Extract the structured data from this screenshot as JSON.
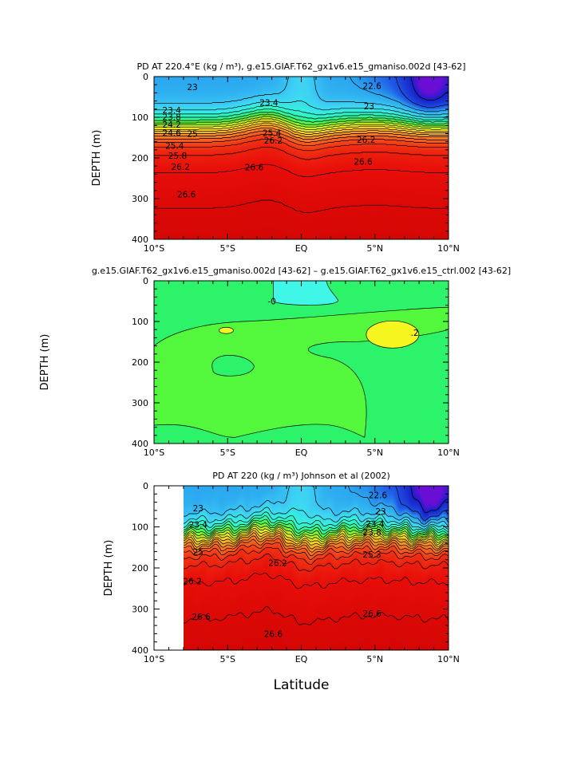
{
  "chart_data": [
    {
      "type": "heatmap",
      "title": "PD AT 220.4°E (kg / m³), g.e15.GIAF.T62_gx1v6.e15_gmaniso.002d [43-62]",
      "ylabel": "DEPTH (m)",
      "xlabel": "",
      "x_tick_labels": [
        "10°S",
        "5°S",
        "EQ",
        "5°N",
        "10°N"
      ],
      "x_ticks": [
        -10,
        -5,
        0,
        5,
        10
      ],
      "y_tick_labels": [
        "0",
        "100",
        "200",
        "300",
        "400"
      ],
      "y_ticks": [
        0,
        100,
        200,
        300,
        400
      ],
      "xlim": [
        -10,
        10
      ],
      "ylim": [
        400,
        0
      ],
      "contour_levels": [
        22.6,
        22.8,
        23.0,
        23.2,
        23.4,
        23.6,
        23.8,
        24.0,
        24.2,
        24.4,
        24.6,
        24.8,
        25.0,
        25.2,
        25.4,
        25.6,
        25.8,
        26.0,
        26.2,
        26.4,
        26.6,
        26.8,
        27.0
      ],
      "contour_labels": [
        {
          "text": "23",
          "x": -7.4,
          "y": 33
        },
        {
          "text": "22.6",
          "x": 4.8,
          "y": 30
        },
        {
          "text": "23.4",
          "x": -2.2,
          "y": 72
        },
        {
          "text": "23",
          "x": 4.6,
          "y": 80
        },
        {
          "text": "23.4",
          "x": -8.8,
          "y": 90
        },
        {
          "text": "23.8",
          "x": -8.8,
          "y": 107
        },
        {
          "text": "24.2",
          "x": -8.8,
          "y": 125
        },
        {
          "text": "24.6",
          "x": -8.8,
          "y": 146
        },
        {
          "text": "25",
          "x": -7.4,
          "y": 148
        },
        {
          "text": "25.4",
          "x": -8.6,
          "y": 177
        },
        {
          "text": "25.8",
          "x": -8.4,
          "y": 202
        },
        {
          "text": "26.2",
          "x": -8.2,
          "y": 229
        },
        {
          "text": "26.6",
          "x": -7.8,
          "y": 297
        },
        {
          "text": "26.6",
          "x": -3.2,
          "y": 230
        },
        {
          "text": "26.6",
          "x": 4.2,
          "y": 217
        },
        {
          "text": "25.4",
          "x": -2.0,
          "y": 146
        },
        {
          "text": "26.2",
          "x": -1.9,
          "y": 165
        },
        {
          "text": "26.2",
          "x": 4.4,
          "y": 163
        }
      ]
    },
    {
      "type": "heatmap",
      "title": "g.e15.GIAF.T62_gx1v6.e15_gmaniso.002d [43-62] – g.e15.GIAF.T62_gx1v6.e15_ctrl.002 [43-62]",
      "ylabel": "DEPTH (m)",
      "xlabel": "",
      "x_tick_labels": [
        "10°S",
        "5°S",
        "EQ",
        "5°N",
        "10°N"
      ],
      "x_ticks": [
        -10,
        -5,
        0,
        5,
        10
      ],
      "y_tick_labels": [
        "0",
        "100",
        "200",
        "300",
        "400"
      ],
      "y_ticks": [
        0,
        100,
        200,
        300,
        400
      ],
      "xlim": [
        -10,
        10
      ],
      "ylim": [
        400,
        0
      ],
      "contour_levels": [
        -0.2,
        0,
        0.2,
        0.4
      ],
      "contour_labels": [
        {
          "text": "-0",
          "x": -2.0,
          "y": 58
        },
        {
          "text": ".2",
          "x": 7.7,
          "y": 135
        }
      ]
    },
    {
      "type": "heatmap",
      "title": "PD AT 220 (kg / m³) Johnson et al (2002)",
      "ylabel": "DEPTH (m)",
      "xlabel": "Latitude",
      "x_tick_labels": [
        "10°S",
        "5°S",
        "EQ",
        "5°N",
        "10°N"
      ],
      "x_ticks": [
        -10,
        -5,
        0,
        5,
        10
      ],
      "y_tick_labels": [
        "0",
        "100",
        "200",
        "300",
        "400"
      ],
      "y_ticks": [
        0,
        100,
        200,
        300,
        400
      ],
      "xlim": [
        -10,
        10
      ],
      "ylim": [
        400,
        0
      ],
      "data_x_range": [
        -8,
        10
      ],
      "contour_levels": [
        22.6,
        22.8,
        23.0,
        23.2,
        23.4,
        23.6,
        23.8,
        24.0,
        24.2,
        24.4,
        24.6,
        24.8,
        25.0,
        25.2,
        25.4,
        25.6,
        25.8,
        26.0,
        26.2,
        26.4,
        26.6,
        26.8,
        27.0
      ],
      "contour_labels": [
        {
          "text": "23",
          "x": -7.0,
          "y": 62
        },
        {
          "text": "23.4",
          "x": -7.0,
          "y": 102
        },
        {
          "text": "25",
          "x": -7.0,
          "y": 168
        },
        {
          "text": "26.2",
          "x": -7.4,
          "y": 240
        },
        {
          "text": "26.6",
          "x": -6.8,
          "y": 326
        },
        {
          "text": "26.6",
          "x": -1.9,
          "y": 368
        },
        {
          "text": "26.6",
          "x": 4.8,
          "y": 318
        },
        {
          "text": "22.6",
          "x": 5.2,
          "y": 30
        },
        {
          "text": "23",
          "x": 5.4,
          "y": 70
        },
        {
          "text": "23.4",
          "x": 5.0,
          "y": 100
        },
        {
          "text": "23.8",
          "x": 4.8,
          "y": 120
        },
        {
          "text": "26.2",
          "x": -1.6,
          "y": 195
        },
        {
          "text": "25.3",
          "x": 4.8,
          "y": 175
        }
      ]
    }
  ]
}
